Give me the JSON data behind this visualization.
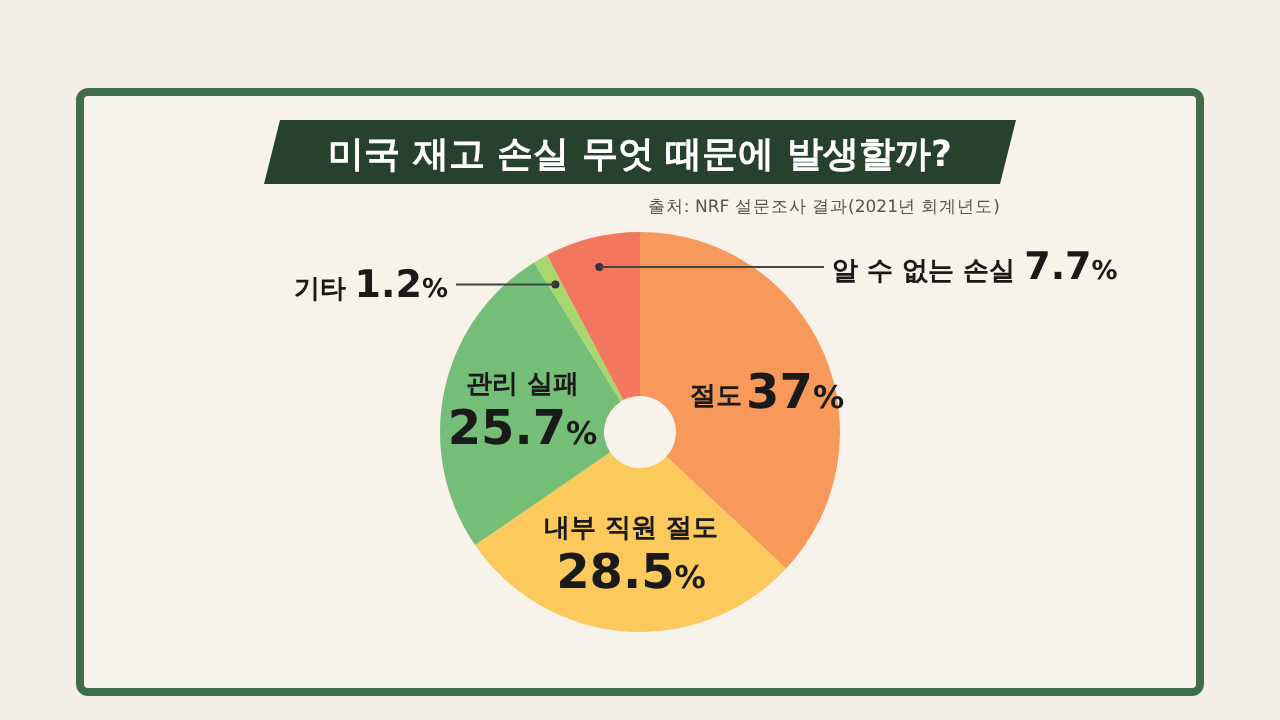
{
  "chart_data": {
    "type": "donut",
    "title": "미국 재고 손실 무엇 때문에 발생할까?",
    "annotations": [
      "출처: NRF 설문조사 결과(2021년 회계년도)"
    ],
    "categories": [
      "절도",
      "내부 직원 절도",
      "관리 실패",
      "기타",
      "알 수 없는 손실"
    ],
    "values": [
      37,
      28.5,
      25.7,
      1.2,
      7.7
    ],
    "value_labels": [
      "37%",
      "28.5%",
      "25.7%",
      "1.2%",
      "7.7%"
    ],
    "colors": [
      "#f7995a",
      "#fbc95c",
      "#74be78",
      "#a6d86e",
      "#f2775e"
    ]
  }
}
